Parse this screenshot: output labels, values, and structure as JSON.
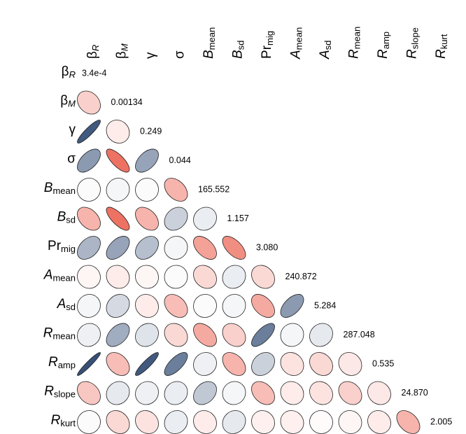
{
  "chart_data": {
    "type": "correlation-ellipse",
    "labels": [
      {
        "main": "β",
        "sub": "R",
        "sub_italic": true
      },
      {
        "main": "β",
        "sub": "M",
        "sub_italic": true
      },
      {
        "main": "γ"
      },
      {
        "main": "σ"
      },
      {
        "main": "B",
        "sub": "mean",
        "main_italic": true
      },
      {
        "main": "B",
        "sub": "sd",
        "main_italic": true
      },
      {
        "main": "Pr",
        "sub": "mig"
      },
      {
        "main": "A",
        "sub": "mean",
        "main_italic": true
      },
      {
        "main": "A",
        "sub": "sd",
        "main_italic": true
      },
      {
        "main": "R",
        "sub": "mean",
        "main_italic": true
      },
      {
        "main": "R",
        "sub": "amp",
        "main_italic": true
      },
      {
        "main": "R",
        "sub": "slope",
        "main_italic": true
      },
      {
        "main": "R",
        "sub": "kurt",
        "main_italic": true
      }
    ],
    "diagonal": {
      "values": [
        0.00034,
        0.00134,
        0.249,
        0.044,
        165.552,
        1.157,
        3.08,
        240.872,
        5.284,
        287.048,
        0.535,
        24.87,
        2.005
      ],
      "value_labels": [
        "3.4e-4",
        "0.00134",
        "0.249",
        "0.044",
        "165.552",
        "1.157",
        "3.080",
        "240.872",
        "5.284",
        "287.048",
        "0.535",
        "24.870",
        "2.005"
      ]
    },
    "correlations": [
      [],
      [
        -0.25
      ],
      [
        0.9,
        -0.1
      ],
      [
        0.55,
        -0.75,
        0.5
      ],
      [
        0.02,
        0.05,
        0.02,
        -0.4
      ],
      [
        -0.4,
        -0.75,
        -0.4,
        0.25,
        0.1
      ],
      [
        0.4,
        0.5,
        0.35,
        0.05,
        -0.5,
        -0.6
      ],
      [
        -0.05,
        -0.1,
        -0.05,
        0.02,
        -0.2,
        0.1,
        -0.2
      ],
      [
        0.05,
        0.2,
        -0.1,
        -0.35,
        0.02,
        0.05,
        -0.45,
        0.55
      ],
      [
        0.08,
        0.45,
        0.15,
        -0.2,
        -0.45,
        -0.25,
        0.7,
        0.05,
        0.12
      ],
      [
        0.95,
        -0.35,
        0.9,
        0.7,
        0.08,
        -0.4,
        0.25,
        -0.15,
        -0.2,
        -0.12
      ],
      [
        -0.3,
        0.12,
        0.08,
        0.1,
        0.3,
        0.05,
        -0.35,
        -0.1,
        -0.15,
        -0.25,
        -0.12
      ],
      [
        0.02,
        -0.2,
        -0.15,
        0.1,
        -0.1,
        0.12,
        -0.08,
        -0.08,
        -0.02,
        -0.05,
        -0.1,
        -0.4
      ]
    ],
    "positive_color": "#2c4770",
    "negative_color": "#e8432f"
  }
}
